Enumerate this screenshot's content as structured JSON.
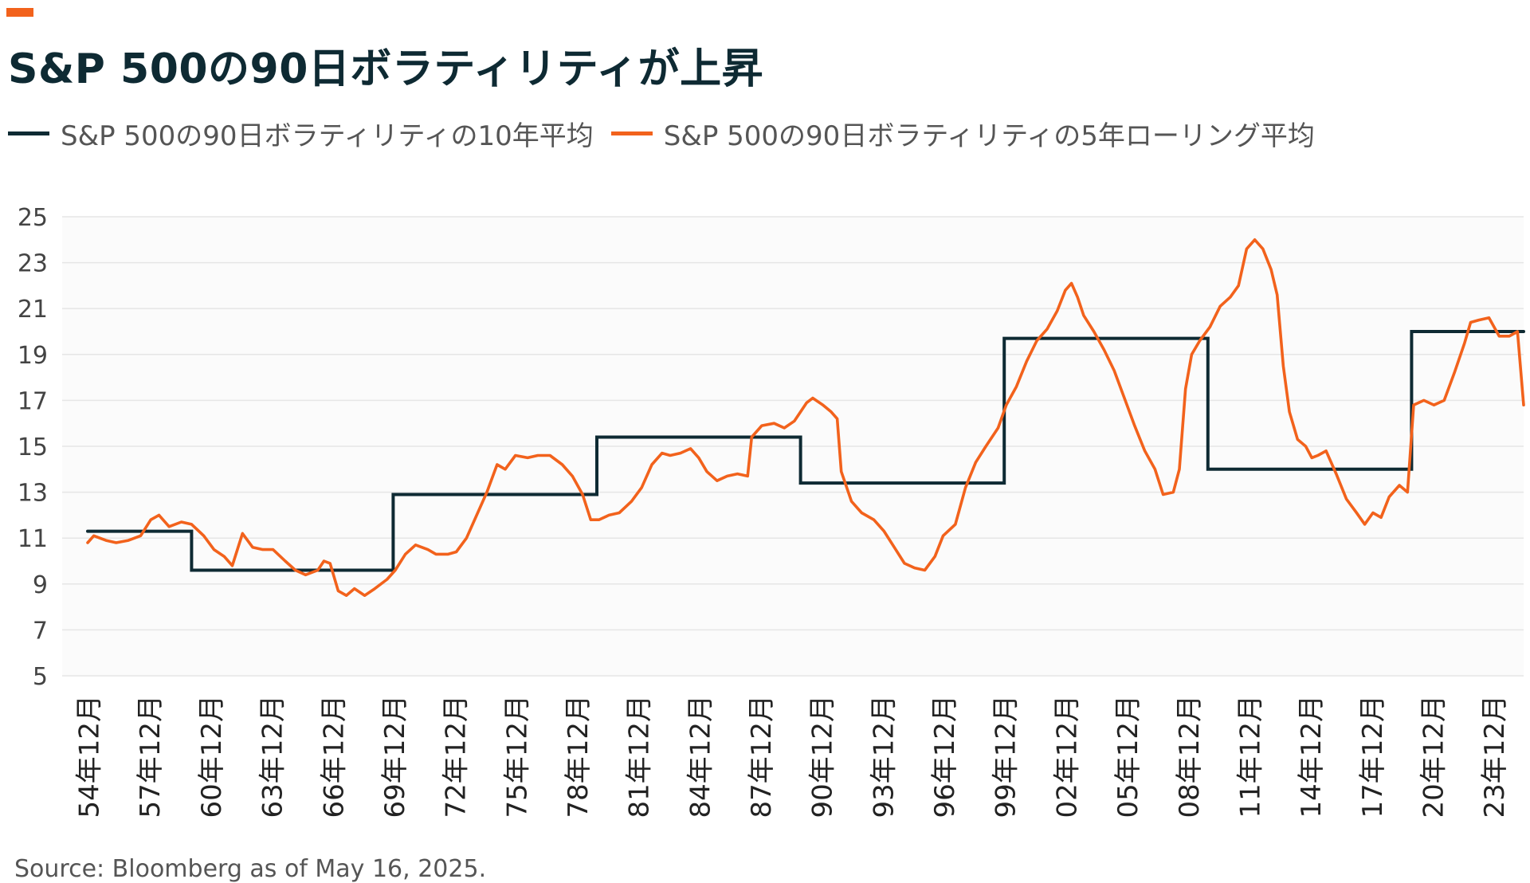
{
  "title": "S&P 500の90日ボラティリティが上昇",
  "colors": {
    "accent": "#f2621c",
    "ten_year": "#0e2a33",
    "rolling": "#f2621c",
    "grid": "#e6e6e6",
    "plot_bg": "#fbfbfb"
  },
  "source": "Source: Bloomberg as of May 16, 2025.",
  "chart_data": {
    "type": "line",
    "legend_position": "top-left",
    "grid": true,
    "ylim": [
      5,
      25
    ],
    "yticks": [
      5,
      7,
      9,
      11,
      13,
      15,
      17,
      19,
      21,
      23,
      25
    ],
    "xlim": [
      1954.9,
      2025.4
    ],
    "x_tick_values": [
      1954.96,
      1957.96,
      1960.96,
      1963.96,
      1966.96,
      1969.96,
      1972.96,
      1975.96,
      1978.96,
      1981.96,
      1984.96,
      1987.96,
      1990.96,
      1993.96,
      1996.96,
      1999.96,
      2002.96,
      2005.96,
      2008.96,
      2011.96,
      2014.96,
      2017.96,
      2020.96,
      2023.96
    ],
    "x_tick_labels": [
      "54年12月",
      "57年12月",
      "60年12月",
      "63年12月",
      "66年12月",
      "69年12月",
      "72年12月",
      "75年12月",
      "78年12月",
      "81年12月",
      "84年12月",
      "87年12月",
      "90年12月",
      "93年12月",
      "96年12月",
      "99年12月",
      "02年12月",
      "05年12月",
      "08年12月",
      "11年12月",
      "14年12月",
      "17年12月",
      "20年12月",
      "23年12月"
    ],
    "series": [
      {
        "name": "S&P 500の90日ボラティリティの10年平均",
        "color": "#0e2a33",
        "step": true,
        "points": [
          [
            1954.9,
            11.3
          ],
          [
            1960.0,
            11.3
          ],
          [
            1960.0,
            9.6
          ],
          [
            1969.9,
            9.6
          ],
          [
            1969.9,
            12.9
          ],
          [
            1979.9,
            12.9
          ],
          [
            1979.9,
            15.4
          ],
          [
            1989.9,
            15.4
          ],
          [
            1989.9,
            13.4
          ],
          [
            1999.9,
            13.4
          ],
          [
            1999.9,
            19.7
          ],
          [
            2009.9,
            19.7
          ],
          [
            2009.9,
            14.0
          ],
          [
            2019.9,
            14.0
          ],
          [
            2019.9,
            20.0
          ],
          [
            2025.4,
            20.0
          ]
        ]
      },
      {
        "name": "S&P 500の90日ボラティリティの5年ローリング平均",
        "color": "#f2621c",
        "step": false,
        "points": [
          [
            1954.9,
            10.8
          ],
          [
            1955.2,
            11.1
          ],
          [
            1955.8,
            10.9
          ],
          [
            1956.3,
            10.8
          ],
          [
            1956.9,
            10.9
          ],
          [
            1957.5,
            11.1
          ],
          [
            1958.0,
            11.8
          ],
          [
            1958.4,
            12.0
          ],
          [
            1958.9,
            11.5
          ],
          [
            1959.5,
            11.7
          ],
          [
            1960.0,
            11.6
          ],
          [
            1960.6,
            11.1
          ],
          [
            1961.1,
            10.5
          ],
          [
            1961.6,
            10.2
          ],
          [
            1962.0,
            9.8
          ],
          [
            1962.5,
            11.2
          ],
          [
            1963.0,
            10.6
          ],
          [
            1963.5,
            10.5
          ],
          [
            1964.0,
            10.5
          ],
          [
            1964.6,
            10.0
          ],
          [
            1965.1,
            9.6
          ],
          [
            1965.6,
            9.4
          ],
          [
            1966.2,
            9.6
          ],
          [
            1966.5,
            10.0
          ],
          [
            1966.8,
            9.9
          ],
          [
            1967.2,
            8.7
          ],
          [
            1967.6,
            8.5
          ],
          [
            1968.0,
            8.8
          ],
          [
            1968.5,
            8.5
          ],
          [
            1969.0,
            8.8
          ],
          [
            1969.6,
            9.2
          ],
          [
            1970.0,
            9.6
          ],
          [
            1970.5,
            10.3
          ],
          [
            1971.0,
            10.7
          ],
          [
            1971.6,
            10.5
          ],
          [
            1972.0,
            10.3
          ],
          [
            1972.6,
            10.3
          ],
          [
            1973.0,
            10.4
          ],
          [
            1973.5,
            11.0
          ],
          [
            1974.0,
            12.0
          ],
          [
            1974.5,
            13.0
          ],
          [
            1975.0,
            14.2
          ],
          [
            1975.4,
            14.0
          ],
          [
            1975.9,
            14.6
          ],
          [
            1976.5,
            14.5
          ],
          [
            1977.0,
            14.6
          ],
          [
            1977.6,
            14.6
          ],
          [
            1978.2,
            14.2
          ],
          [
            1978.7,
            13.7
          ],
          [
            1979.2,
            12.9
          ],
          [
            1979.6,
            11.8
          ],
          [
            1980.0,
            11.8
          ],
          [
            1980.5,
            12.0
          ],
          [
            1981.0,
            12.1
          ],
          [
            1981.6,
            12.6
          ],
          [
            1982.1,
            13.2
          ],
          [
            1982.6,
            14.2
          ],
          [
            1983.1,
            14.7
          ],
          [
            1983.5,
            14.6
          ],
          [
            1984.0,
            14.7
          ],
          [
            1984.5,
            14.9
          ],
          [
            1984.9,
            14.5
          ],
          [
            1985.3,
            13.9
          ],
          [
            1985.8,
            13.5
          ],
          [
            1986.3,
            13.7
          ],
          [
            1986.8,
            13.8
          ],
          [
            1987.3,
            13.7
          ],
          [
            1987.5,
            15.4
          ],
          [
            1988.0,
            15.9
          ],
          [
            1988.6,
            16.0
          ],
          [
            1989.1,
            15.8
          ],
          [
            1989.6,
            16.1
          ],
          [
            1990.2,
            16.9
          ],
          [
            1990.5,
            17.1
          ],
          [
            1991.0,
            16.8
          ],
          [
            1991.4,
            16.5
          ],
          [
            1991.7,
            16.2
          ],
          [
            1991.9,
            13.9
          ],
          [
            1992.4,
            12.6
          ],
          [
            1992.9,
            12.1
          ],
          [
            1993.5,
            11.8
          ],
          [
            1994.0,
            11.3
          ],
          [
            1994.5,
            10.6
          ],
          [
            1995.0,
            9.9
          ],
          [
            1995.5,
            9.7
          ],
          [
            1996.0,
            9.6
          ],
          [
            1996.5,
            10.2
          ],
          [
            1996.9,
            11.1
          ],
          [
            1997.5,
            11.6
          ],
          [
            1998.0,
            13.2
          ],
          [
            1998.5,
            14.3
          ],
          [
            1999.0,
            15.0
          ],
          [
            1999.6,
            15.8
          ],
          [
            2000.0,
            16.8
          ],
          [
            2000.5,
            17.6
          ],
          [
            2001.0,
            18.7
          ],
          [
            2001.5,
            19.6
          ],
          [
            2002.0,
            20.1
          ],
          [
            2002.5,
            20.9
          ],
          [
            2002.9,
            21.8
          ],
          [
            2003.2,
            22.1
          ],
          [
            2003.5,
            21.5
          ],
          [
            2003.8,
            20.7
          ],
          [
            2004.3,
            20.0
          ],
          [
            2004.8,
            19.2
          ],
          [
            2005.3,
            18.3
          ],
          [
            2005.8,
            17.1
          ],
          [
            2006.3,
            15.9
          ],
          [
            2006.8,
            14.8
          ],
          [
            2007.3,
            14.0
          ],
          [
            2007.7,
            12.9
          ],
          [
            2008.2,
            13.0
          ],
          [
            2008.5,
            14.0
          ],
          [
            2008.8,
            17.5
          ],
          [
            2009.1,
            19.0
          ],
          [
            2009.5,
            19.6
          ],
          [
            2010.0,
            20.2
          ],
          [
            2010.5,
            21.1
          ],
          [
            2011.0,
            21.5
          ],
          [
            2011.4,
            22.0
          ],
          [
            2011.8,
            23.6
          ],
          [
            2012.2,
            24.0
          ],
          [
            2012.6,
            23.6
          ],
          [
            2013.0,
            22.7
          ],
          [
            2013.3,
            21.6
          ],
          [
            2013.6,
            18.5
          ],
          [
            2013.9,
            16.5
          ],
          [
            2014.3,
            15.3
          ],
          [
            2014.7,
            15.0
          ],
          [
            2015.0,
            14.5
          ],
          [
            2015.3,
            14.6
          ],
          [
            2015.7,
            14.8
          ],
          [
            2016.2,
            13.8
          ],
          [
            2016.7,
            12.7
          ],
          [
            2017.2,
            12.1
          ],
          [
            2017.6,
            11.6
          ],
          [
            2018.0,
            12.1
          ],
          [
            2018.4,
            11.9
          ],
          [
            2018.8,
            12.8
          ],
          [
            2019.3,
            13.3
          ],
          [
            2019.7,
            13.0
          ],
          [
            2020.0,
            16.8
          ],
          [
            2020.5,
            17.0
          ],
          [
            2021.0,
            16.8
          ],
          [
            2021.5,
            17.0
          ],
          [
            2022.0,
            18.2
          ],
          [
            2022.5,
            19.5
          ],
          [
            2022.8,
            20.4
          ],
          [
            2023.2,
            20.5
          ],
          [
            2023.7,
            20.6
          ],
          [
            2024.2,
            19.8
          ],
          [
            2024.7,
            19.8
          ],
          [
            2025.1,
            20.0
          ],
          [
            2025.4,
            16.8
          ]
        ]
      }
    ]
  }
}
